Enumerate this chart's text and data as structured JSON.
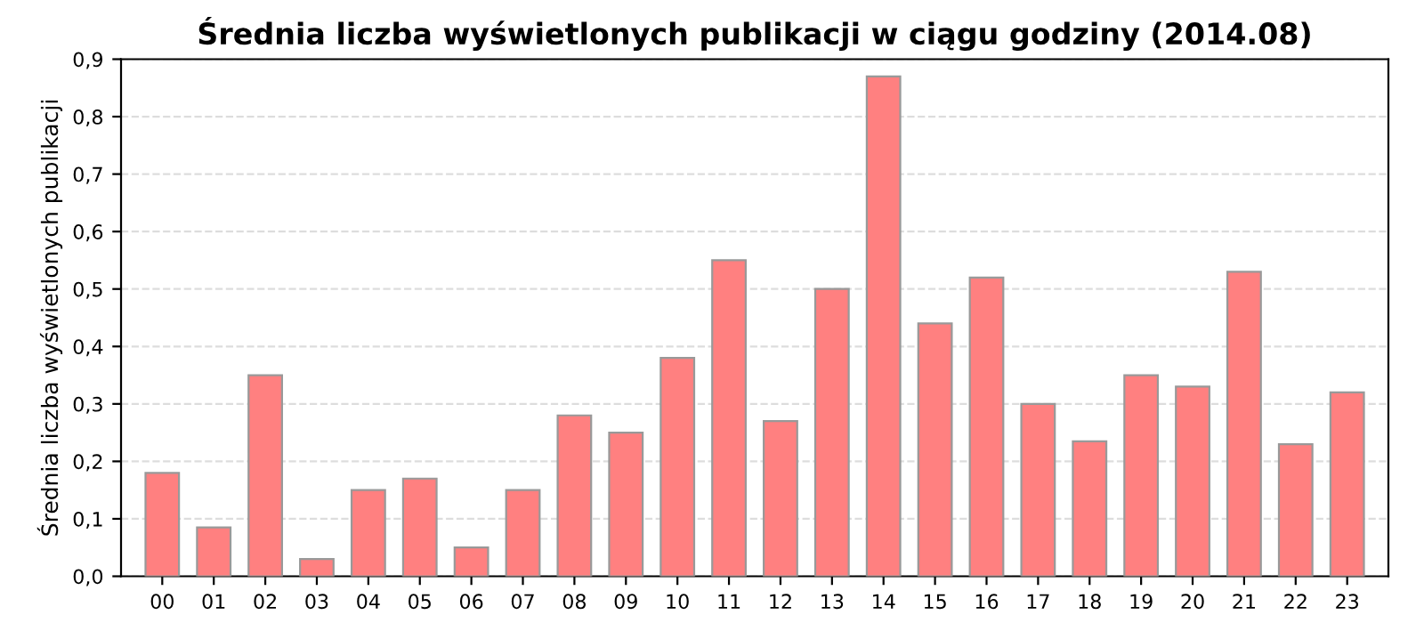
{
  "chart_data": {
    "type": "bar",
    "title": "Średnia liczba wyświetlonych publikacji w ciągu godziny (2014.08)",
    "ylabel": "Średnia liczba wyświetlonych publikacji",
    "categories": [
      "00",
      "01",
      "02",
      "03",
      "04",
      "05",
      "06",
      "07",
      "08",
      "09",
      "10",
      "11",
      "12",
      "13",
      "14",
      "15",
      "16",
      "17",
      "18",
      "19",
      "20",
      "21",
      "22",
      "23"
    ],
    "values": [
      0.18,
      0.085,
      0.35,
      0.03,
      0.15,
      0.17,
      0.05,
      0.15,
      0.28,
      0.25,
      0.38,
      0.55,
      0.27,
      0.5,
      0.87,
      0.44,
      0.52,
      0.3,
      0.235,
      0.35,
      0.33,
      0.53,
      0.23,
      0.32
    ],
    "color": "#ff8080",
    "ylim": [
      0,
      0.9
    ],
    "yticks": [
      {
        "value": 0,
        "label": "0,0"
      },
      {
        "value": 0.1,
        "label": "0,1"
      },
      {
        "value": 0.2,
        "label": "0,2"
      },
      {
        "value": 0.3,
        "label": "0,3"
      },
      {
        "value": 0.4,
        "label": "0,4"
      },
      {
        "value": 0.5,
        "label": "0,5"
      },
      {
        "value": 0.6,
        "label": "0,6"
      },
      {
        "value": 0.7,
        "label": "0,7"
      },
      {
        "value": 0.8,
        "label": "0,8"
      },
      {
        "value": 0.9,
        "label": "0,9"
      }
    ],
    "grid": "y"
  }
}
